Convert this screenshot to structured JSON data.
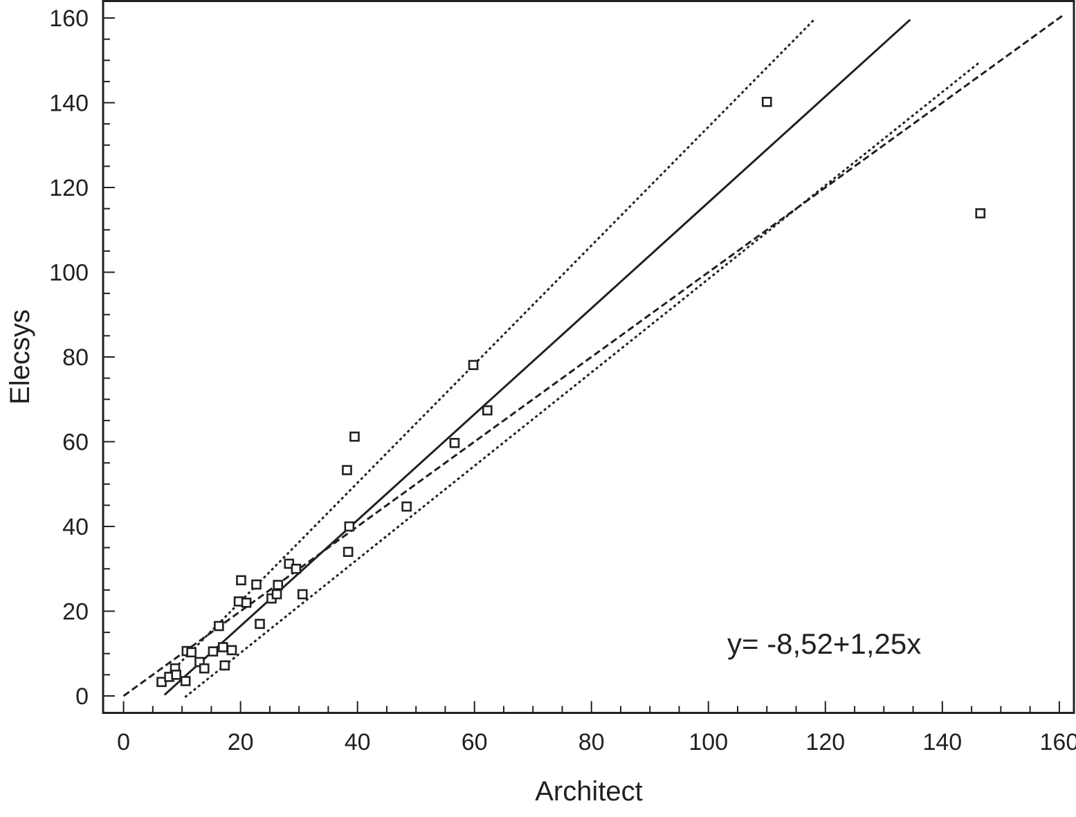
{
  "chart_data": {
    "type": "scatter",
    "title": "",
    "xlabel": "Architect",
    "ylabel": "Elecsys",
    "xlim": [
      -3.5,
      162.5
    ],
    "ylim": [
      -4,
      164
    ],
    "xticks": [
      0,
      20,
      40,
      60,
      80,
      100,
      120,
      140,
      160
    ],
    "yticks": [
      0,
      20,
      40,
      60,
      80,
      100,
      120,
      140,
      160
    ],
    "grid": false,
    "legend": "none",
    "annotation": "y= -8,52+1,25x",
    "colors": {
      "ink": "#231f20",
      "background": "#ffffff"
    },
    "points": [
      {
        "x": 6.5,
        "y": 3.3
      },
      {
        "x": 7.8,
        "y": 4.5
      },
      {
        "x": 8.8,
        "y": 6.5
      },
      {
        "x": 9.0,
        "y": 5.0
      },
      {
        "x": 10.6,
        "y": 3.5
      },
      {
        "x": 10.8,
        "y": 10.6
      },
      {
        "x": 11.6,
        "y": 10.3
      },
      {
        "x": 13.0,
        "y": 8.0
      },
      {
        "x": 13.8,
        "y": 6.5
      },
      {
        "x": 15.3,
        "y": 10.5
      },
      {
        "x": 16.3,
        "y": 16.5
      },
      {
        "x": 17.0,
        "y": 11.5
      },
      {
        "x": 17.3,
        "y": 7.2
      },
      {
        "x": 18.5,
        "y": 10.8
      },
      {
        "x": 19.7,
        "y": 22.3
      },
      {
        "x": 20.1,
        "y": 27.3
      },
      {
        "x": 21.0,
        "y": 22.0
      },
      {
        "x": 22.7,
        "y": 26.3
      },
      {
        "x": 23.3,
        "y": 17.0
      },
      {
        "x": 25.3,
        "y": 23.0
      },
      {
        "x": 26.2,
        "y": 24.0
      },
      {
        "x": 26.4,
        "y": 26.2
      },
      {
        "x": 28.3,
        "y": 31.2
      },
      {
        "x": 29.5,
        "y": 30.0
      },
      {
        "x": 30.6,
        "y": 24.0
      },
      {
        "x": 38.2,
        "y": 53.3
      },
      {
        "x": 38.4,
        "y": 34.0
      },
      {
        "x": 38.6,
        "y": 40.0
      },
      {
        "x": 39.5,
        "y": 61.2
      },
      {
        "x": 48.4,
        "y": 44.7
      },
      {
        "x": 56.6,
        "y": 59.7
      },
      {
        "x": 59.8,
        "y": 78.1
      },
      {
        "x": 62.2,
        "y": 67.4
      },
      {
        "x": 110.0,
        "y": 140.2
      },
      {
        "x": 146.5,
        "y": 113.9
      }
    ],
    "lines": [
      {
        "style": "solid",
        "x": [
          7,
          134.5
        ],
        "y": [
          0.25,
          159.6
        ]
      },
      {
        "style": "dashed",
        "x": [
          0,
          160.5
        ],
        "y": [
          0,
          160.5
        ]
      },
      {
        "style": "dotted",
        "x": [
          8,
          118
        ],
        "y": [
          5.5,
          159.5
        ]
      },
      {
        "style": "dotted",
        "x": [
          10.5,
          146.5
        ],
        "y": [
          -0.3,
          149.7
        ]
      }
    ]
  }
}
